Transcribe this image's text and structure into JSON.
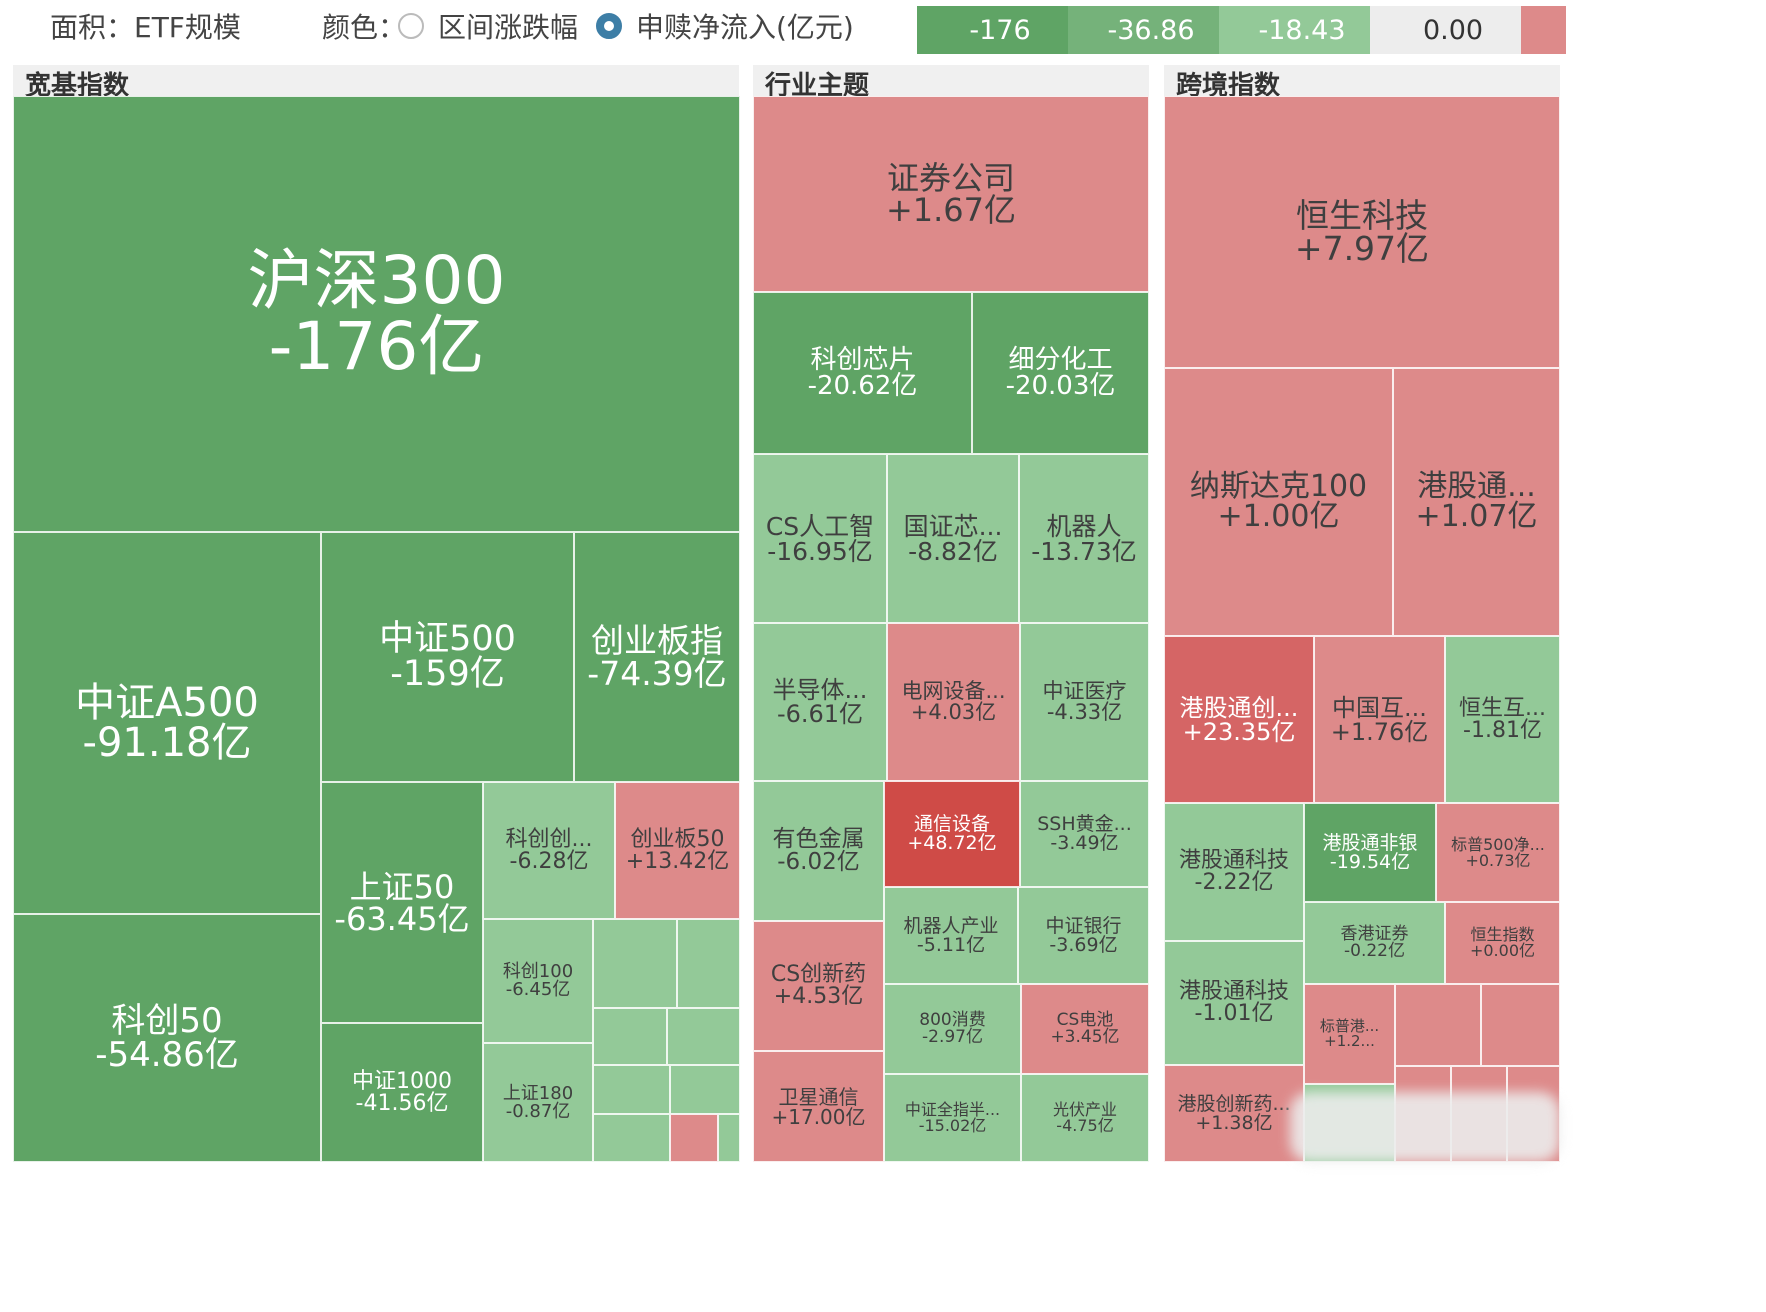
{
  "topbar": {
    "area_label": "面积：ETF规模",
    "color_label": "颜色：",
    "option_change": "区间涨跌幅",
    "option_flow": "申赎净流入(亿元)",
    "legend": [
      "-176",
      "-36.86",
      "-18.43",
      "0.00",
      ""
    ]
  },
  "colors": {
    "strong_green": "#5fa465",
    "light_green": "#93c998",
    "light_red": "#dd8a8a",
    "mid_red": "#d56565",
    "strong_red": "#cf4b47",
    "radio_selected": "#3d7ea6"
  },
  "panels": {
    "broad": {
      "title": "宽基指数",
      "cells": [
        {
          "name": "沪深300",
          "value": "-176亿"
        },
        {
          "name": "中证A500",
          "value": "-91.18亿"
        },
        {
          "name": "中证500",
          "value": "-159亿"
        },
        {
          "name": "创业板指",
          "value": "-74.39亿"
        },
        {
          "name": "科创50",
          "value": "-54.86亿"
        },
        {
          "name": "上证50",
          "value": "-63.45亿"
        },
        {
          "name": "科创创...",
          "value": "-6.28亿"
        },
        {
          "name": "创业板50",
          "value": "+13.42亿"
        },
        {
          "name": "科创100",
          "value": "-6.45亿"
        },
        {
          "name": "中证1000",
          "value": "-41.56亿"
        },
        {
          "name": "上证180",
          "value": "-0.87亿"
        }
      ]
    },
    "industry": {
      "title": "行业主题",
      "cells": [
        {
          "name": "证券公司",
          "value": "+1.67亿"
        },
        {
          "name": "科创芯片",
          "value": "-20.62亿"
        },
        {
          "name": "细分化工",
          "value": "-20.03亿"
        },
        {
          "name": "CS人工智",
          "value": "-16.95亿"
        },
        {
          "name": "国证芯...",
          "value": "-8.82亿"
        },
        {
          "name": "机器人",
          "value": "-13.73亿"
        },
        {
          "name": "半导体...",
          "value": "-6.61亿"
        },
        {
          "name": "电网设备...",
          "value": "+4.03亿"
        },
        {
          "name": "中证医疗",
          "value": "-4.33亿"
        },
        {
          "name": "有色金属",
          "value": "-6.02亿"
        },
        {
          "name": "通信设备",
          "value": "+48.72亿"
        },
        {
          "name": "SSH黄金...",
          "value": "-3.49亿"
        },
        {
          "name": "机器人产业",
          "value": "-5.11亿"
        },
        {
          "name": "中证银行",
          "value": "-3.69亿"
        },
        {
          "name": "CS创新药",
          "value": "+4.53亿"
        },
        {
          "name": "800消费",
          "value": "-2.97亿"
        },
        {
          "name": "CS电池",
          "value": "+3.45亿"
        },
        {
          "name": "卫星通信",
          "value": "+17.00亿"
        },
        {
          "name": "中证全指半...",
          "value": "-15.02亿"
        },
        {
          "name": "光伏产业",
          "value": "-4.75亿"
        }
      ]
    },
    "cross": {
      "title": "跨境指数",
      "cells": [
        {
          "name": "恒生科技",
          "value": "+7.97亿"
        },
        {
          "name": "纳斯达克100",
          "value": "+1.00亿"
        },
        {
          "name": "港股通...",
          "value": "+1.07亿"
        },
        {
          "name": "港股通创...",
          "value": "+23.35亿"
        },
        {
          "name": "中国互...",
          "value": "+1.76亿"
        },
        {
          "name": "恒生互...",
          "value": "-1.81亿"
        },
        {
          "name": "港股通科技",
          "value": "-2.22亿"
        },
        {
          "name": "港股通非银",
          "value": "-19.54亿"
        },
        {
          "name": "标普500净...",
          "value": "+0.73亿"
        },
        {
          "name": "香港证券",
          "value": "-0.22亿"
        },
        {
          "name": "恒生指数",
          "value": "+0.00亿"
        },
        {
          "name": "港股通科技",
          "value": "-1.01亿"
        },
        {
          "name": "标普港...",
          "value": "+1.2..."
        },
        {
          "name": "港股创新药...",
          "value": "+1.38亿"
        }
      ]
    }
  }
}
